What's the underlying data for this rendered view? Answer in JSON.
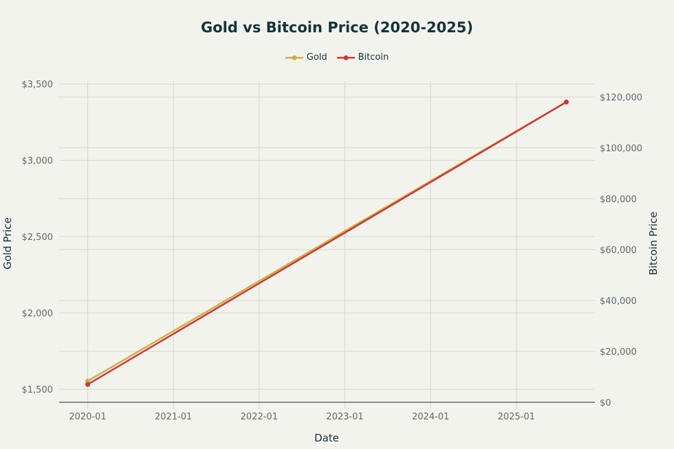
{
  "chart_data": {
    "type": "line",
    "title": "Gold vs Bitcoin Price (2020-2025)",
    "xlabel": "Date",
    "ylabel_left": "Gold Price",
    "ylabel_right": "Bitcoin Price",
    "x": [
      "2020-01",
      "2025-08"
    ],
    "x_ticks": [
      "2020-01",
      "2021-01",
      "2022-01",
      "2023-01",
      "2024-01",
      "2025-01"
    ],
    "xlim": [
      "2019-09",
      "2025-12"
    ],
    "series": [
      {
        "name": "Gold",
        "axis": "left",
        "values": [
          1554,
          3383
        ],
        "color": "#c9b23f"
      },
      {
        "name": "Bitcoin",
        "axis": "right",
        "values": [
          7000,
          118000
        ],
        "color": "#d13438"
      }
    ],
    "y_left": {
      "ticks": [
        1500,
        2000,
        2500,
        3000,
        3500
      ],
      "tick_labels": [
        "$1,500",
        "$2,000",
        "$2,500",
        "$3,000",
        "$3,500"
      ],
      "lim": [
        1415,
        3555
      ]
    },
    "y_right": {
      "ticks": [
        0,
        20000,
        40000,
        60000,
        80000,
        100000,
        120000
      ],
      "tick_labels": [
        "$0",
        "$20,000",
        "$40,000",
        "$60,000",
        "$80,000",
        "$100,000",
        "$120,000"
      ],
      "lim": [
        0,
        128400
      ]
    },
    "grid": true,
    "legend_position": "top-center"
  }
}
